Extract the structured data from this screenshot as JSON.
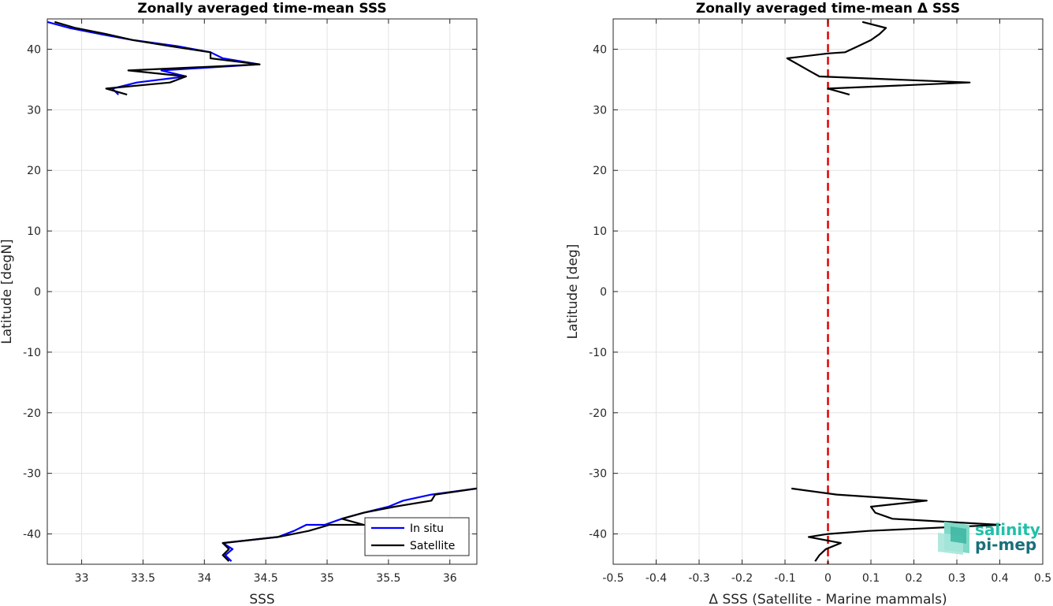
{
  "chart_data": [
    {
      "type": "line",
      "title": "Zonally averaged time-mean SSS",
      "xlabel": "SSS",
      "ylabel": "Latitude [degN]",
      "xlim": [
        32.72,
        36.22
      ],
      "ylim": [
        -45,
        45
      ],
      "xticks": [
        33,
        33.5,
        34,
        34.5,
        35,
        35.5,
        36
      ],
      "xtick_labels": [
        "33",
        "33.5",
        "34",
        "34.5",
        "35",
        "35.5",
        "36"
      ],
      "yticks": [
        -40,
        -30,
        -20,
        -10,
        0,
        10,
        20,
        30,
        40
      ],
      "ytick_labels": [
        "-40",
        "-30",
        "-20",
        "-10",
        "0",
        "10",
        "20",
        "30",
        "40"
      ],
      "grid": true,
      "legend": {
        "position": "bottom-right",
        "entries": [
          "In situ",
          "Satellite"
        ]
      },
      "series": [
        {
          "name": "In situ",
          "color": "#0000ff",
          "segments": [
            [
              [
                32.72,
                44.5
              ],
              [
                32.9,
                43.5
              ],
              [
                33.15,
                42.5
              ],
              [
                33.42,
                41.5
              ],
              [
                33.78,
                40.5
              ],
              [
                34.05,
                39.5
              ],
              [
                34.15,
                38.5
              ],
              [
                34.45,
                37.5
              ],
              [
                33.65,
                36.5
              ],
              [
                33.85,
                35.5
              ],
              [
                33.45,
                34.5
              ],
              [
                33.25,
                33.5
              ],
              [
                33.3,
                32.5
              ]
            ],
            [
              [
                36.22,
                -32.5
              ],
              [
                35.85,
                -33.5
              ],
              [
                35.62,
                -34.5
              ],
              [
                35.5,
                -35.5
              ],
              [
                35.3,
                -36.5
              ],
              [
                35.12,
                -37.5
              ],
              [
                34.98,
                -38.5
              ],
              [
                34.83,
                -38.5
              ],
              [
                34.73,
                -39.5
              ],
              [
                34.6,
                -40.5
              ],
              [
                34.15,
                -41.5
              ],
              [
                34.23,
                -42.5
              ],
              [
                34.17,
                -43.5
              ],
              [
                34.22,
                -44.5
              ]
            ]
          ]
        },
        {
          "name": "Satellite",
          "color": "#000000",
          "segments": [
            [
              [
                32.78,
                44.5
              ],
              [
                32.95,
                43.5
              ],
              [
                33.2,
                42.5
              ],
              [
                33.42,
                41.5
              ],
              [
                33.72,
                40.5
              ],
              [
                34.05,
                39.5
              ],
              [
                34.05,
                38.5
              ],
              [
                34.45,
                37.5
              ],
              [
                33.38,
                36.5
              ],
              [
                33.85,
                35.5
              ],
              [
                33.72,
                34.5
              ],
              [
                33.2,
                33.5
              ],
              [
                33.37,
                32.5
              ]
            ],
            [
              [
                36.22,
                -32.5
              ],
              [
                35.88,
                -33.5
              ],
              [
                35.85,
                -34.5
              ],
              [
                35.55,
                -35.5
              ],
              [
                35.3,
                -36.5
              ],
              [
                35.12,
                -37.5
              ],
              [
                35.3,
                -38.5
              ],
              [
                35.02,
                -38.5
              ],
              [
                34.85,
                -39.5
              ],
              [
                34.6,
                -40.5
              ],
              [
                34.15,
                -41.5
              ],
              [
                34.2,
                -42.5
              ],
              [
                34.15,
                -43.5
              ],
              [
                34.2,
                -44.5
              ]
            ]
          ]
        }
      ]
    },
    {
      "type": "line",
      "title": "Zonally averaged time-mean Δ SSS",
      "xlabel": "Δ SSS (Satellite - Marine mammals)",
      "ylabel": "Latitude [deg]",
      "xlim": [
        -0.5,
        0.5
      ],
      "ylim": [
        -45,
        45
      ],
      "xticks": [
        -0.5,
        -0.4,
        -0.3,
        -0.2,
        -0.1,
        0,
        0.1,
        0.2,
        0.3,
        0.4,
        0.5
      ],
      "xtick_labels": [
        "-0.5",
        "-0.4",
        "-0.3",
        "-0.2",
        "-0.1",
        "0",
        "0.1",
        "0.2",
        "0.3",
        "0.4",
        "0.5"
      ],
      "yticks": [
        -40,
        -30,
        -20,
        -10,
        0,
        10,
        20,
        30,
        40
      ],
      "ytick_labels": [
        "-40",
        "-30",
        "-20",
        "-10",
        "0",
        "10",
        "20",
        "30",
        "40"
      ],
      "grid": true,
      "reference_line": {
        "x": 0,
        "color": "#e00000",
        "style": "dashed"
      },
      "series": [
        {
          "color": "#000000",
          "segments": [
            [
              [
                0.08,
                44.5
              ],
              [
                0.135,
                43.5
              ],
              [
                0.12,
                42.5
              ],
              [
                0.1,
                41.5
              ],
              [
                0.07,
                40.5
              ],
              [
                0.04,
                39.5
              ],
              [
                0.0,
                39.3
              ],
              [
                -0.095,
                38.5
              ],
              [
                -0.07,
                37.5
              ],
              [
                -0.045,
                36.5
              ],
              [
                -0.02,
                35.5
              ],
              [
                0.33,
                34.5
              ],
              [
                0.0,
                33.5
              ],
              [
                0.05,
                32.5
              ]
            ],
            [
              [
                -0.085,
                -32.5
              ],
              [
                0.02,
                -33.5
              ],
              [
                0.23,
                -34.5
              ],
              [
                0.1,
                -35.5
              ],
              [
                0.11,
                -36.5
              ],
              [
                0.15,
                -37.5
              ],
              [
                0.4,
                -38.5
              ],
              [
                0.095,
                -39.5
              ],
              [
                0.0,
                -40.0
              ],
              [
                -0.045,
                -40.5
              ],
              [
                0.03,
                -41.5
              ],
              [
                -0.005,
                -42.5
              ],
              [
                -0.02,
                -43.5
              ],
              [
                -0.03,
                -44.5
              ]
            ]
          ]
        }
      ]
    }
  ],
  "logo": {
    "line1": "salinity",
    "line2": "pi-mep",
    "color1": "#20c0a8",
    "color2": "#1a6f7a"
  }
}
